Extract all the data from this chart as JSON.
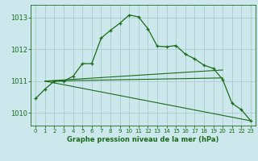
{
  "background_color": "#cce8ec",
  "grid_color": "#aacccc",
  "line_color": "#1a6b1a",
  "title": "Graphe pression niveau de la mer (hPa)",
  "xlim": [
    -0.5,
    23.5
  ],
  "ylim": [
    1009.6,
    1013.4
  ],
  "yticks": [
    1010,
    1011,
    1012,
    1013
  ],
  "xticks": [
    0,
    1,
    2,
    3,
    4,
    5,
    6,
    7,
    8,
    9,
    10,
    11,
    12,
    13,
    14,
    15,
    16,
    17,
    18,
    19,
    20,
    21,
    22,
    23
  ],
  "series1": [
    1010.45,
    1010.75,
    1011.0,
    1011.0,
    1011.15,
    1011.55,
    1011.55,
    1012.35,
    1012.6,
    1012.82,
    1013.08,
    1013.02,
    1012.65,
    1012.1,
    1012.08,
    1012.12,
    1011.85,
    1011.7,
    1011.5,
    1011.4,
    1011.05,
    1010.3,
    1010.1,
    1009.75
  ],
  "series2_x": [
    1,
    20
  ],
  "series2_y": [
    1011.0,
    1011.35
  ],
  "series3_x": [
    1,
    20
  ],
  "series3_y": [
    1011.0,
    1011.1
  ],
  "series4_x": [
    1,
    23
  ],
  "series4_y": [
    1011.0,
    1009.75
  ]
}
